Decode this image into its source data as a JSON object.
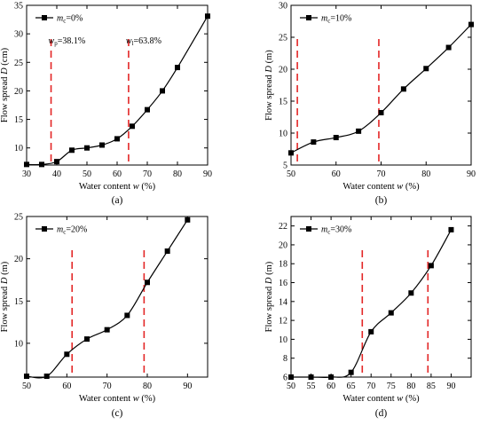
{
  "chart_data": [
    {
      "type": "line",
      "panel_label": "(a)",
      "legend": {
        "symbol_base": "m",
        "symbol_sub": "c",
        "text": "=0%"
      },
      "xlabel": {
        "text": "Water content ",
        "var": "w",
        "unit": " (%)"
      },
      "ylabel": {
        "text": "Flow spread ",
        "var": "D",
        "unit": " (cm)"
      },
      "xlim": [
        30,
        90
      ],
      "ylim": [
        7,
        35
      ],
      "xticks": [
        30,
        40,
        50,
        60,
        70,
        80,
        90
      ],
      "yticks": [
        10,
        15,
        20,
        25,
        30,
        35
      ],
      "series": [
        {
          "x": [
            30,
            35,
            40,
            45,
            50,
            55,
            60,
            65,
            70,
            75,
            80,
            90
          ],
          "y": [
            7.1,
            7.1,
            7.6,
            9.6,
            10.0,
            10.5,
            11.6,
            13.8,
            16.7,
            20.0,
            24.1,
            33.1
          ]
        }
      ],
      "vlines": [
        38.1,
        63.8
      ],
      "annotations": [
        {
          "x": 38.1,
          "y": 28.3,
          "base": "w",
          "sub": "p",
          "text": "=38.1%"
        },
        {
          "x": 63.8,
          "y": 28.3,
          "base": "w",
          "sub": "l",
          "text": "=63.8%"
        }
      ]
    },
    {
      "type": "line",
      "panel_label": "(b)",
      "legend": {
        "symbol_base": "m",
        "symbol_sub": "c",
        "text": "=10%"
      },
      "xlabel": {
        "text": "Water content ",
        "var": "w",
        "unit": " (%)"
      },
      "ylabel": {
        "text": "Flow spread ",
        "var": "D",
        "unit": " (m)"
      },
      "xlim": [
        50,
        90
      ],
      "ylim": [
        5,
        30
      ],
      "xticks": [
        50,
        60,
        70,
        80,
        90
      ],
      "yticks": [
        5,
        10,
        15,
        20,
        25,
        30
      ],
      "series": [
        {
          "x": [
            50,
            55,
            60,
            65,
            70,
            75,
            80,
            85,
            90
          ],
          "y": [
            6.9,
            8.6,
            9.3,
            10.3,
            13.2,
            16.9,
            20.1,
            23.4,
            27.0
          ]
        }
      ],
      "vlines": [
        51.4,
        69.5
      ]
    },
    {
      "type": "line",
      "panel_label": "(c)",
      "legend": {
        "symbol_base": "m",
        "symbol_sub": "c",
        "text": "=20%"
      },
      "xlabel": {
        "text": "Water content ",
        "var": "w",
        "unit": " (%)"
      },
      "ylabel": {
        "text": "Flow spread ",
        "var": "D",
        "unit": " (m)"
      },
      "xlim": [
        50,
        95
      ],
      "ylim": [
        6,
        25
      ],
      "xticks": [
        50,
        60,
        70,
        80,
        90
      ],
      "yticks": [
        10,
        15,
        20,
        25
      ],
      "series": [
        {
          "x": [
            50,
            55,
            60,
            65,
            70,
            75,
            80,
            85,
            90
          ],
          "y": [
            6.1,
            6.1,
            8.7,
            10.5,
            11.6,
            13.3,
            17.2,
            20.9,
            24.6
          ]
        }
      ],
      "vlines": [
        61.3,
        79.2
      ]
    },
    {
      "type": "line",
      "panel_label": "(d)",
      "legend": {
        "symbol_base": "m",
        "symbol_sub": "c",
        "text": "=30%"
      },
      "xlabel": {
        "text": "Water content ",
        "var": "w",
        "unit": " (%)"
      },
      "ylabel": {
        "text": "Flow spread ",
        "var": "D",
        "unit": " (m)"
      },
      "xlim": [
        50,
        95
      ],
      "ylim": [
        6,
        23
      ],
      "xticks": [
        50,
        55,
        60,
        65,
        70,
        75,
        80,
        85,
        90
      ],
      "yticks": [
        6,
        8,
        10,
        12,
        14,
        16,
        18,
        20,
        22
      ],
      "series": [
        {
          "x": [
            50,
            55,
            60,
            65,
            70,
            75,
            80,
            85,
            90
          ],
          "y": [
            6.0,
            6.0,
            6.0,
            6.5,
            10.8,
            12.8,
            14.9,
            17.8,
            21.6
          ]
        }
      ],
      "vlines": [
        67.8,
        84.2
      ]
    }
  ],
  "colors": {
    "axis": "#000000",
    "series": "#000000",
    "threshold": "#e32626"
  }
}
